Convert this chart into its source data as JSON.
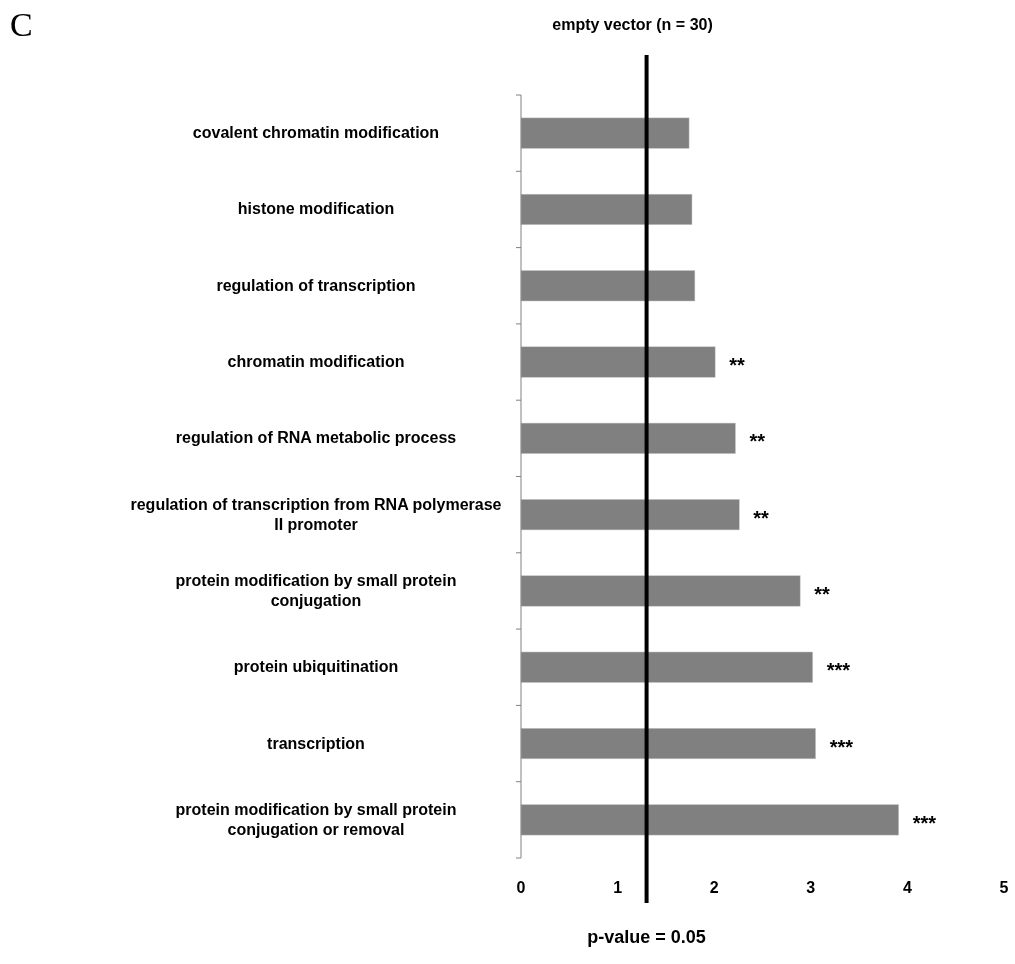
{
  "chart_data": {
    "type": "bar",
    "orientation": "horizontal",
    "title": "empty vector (n = 30)",
    "categories": [
      "covalent chromatin modification",
      "histone modification",
      "regulation of transcription",
      "chromatin modification",
      "regulation of RNA metabolic process",
      "regulation of transcription from RNA polymerase II promoter",
      "protein modification by small protein conjugation",
      "protein ubiquitination",
      "transcription",
      "protein modification by small protein conjugation or removal"
    ],
    "values": [
      1.74,
      1.77,
      1.8,
      2.01,
      2.22,
      2.26,
      2.89,
      3.02,
      3.05,
      3.91
    ],
    "value_labels": [
      null,
      null,
      null,
      "**",
      "**",
      "**",
      "**",
      "***",
      "***",
      "***"
    ],
    "color": "#808080",
    "xlim": [
      0,
      5
    ],
    "xticks": [
      0,
      1,
      2,
      3,
      4,
      5
    ],
    "ref_lines": [
      {
        "axis": "x",
        "value": 1.3,
        "color": "#000000"
      }
    ],
    "annotations": [
      "C",
      "p-value = 0.05"
    ],
    "grid": false
  }
}
